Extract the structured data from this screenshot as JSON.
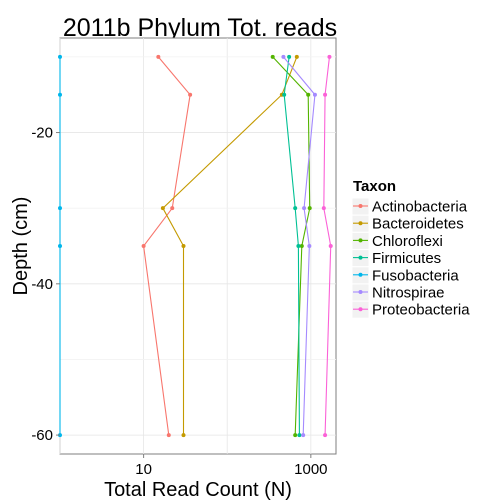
{
  "chart_data": {
    "type": "line",
    "title": "2011b Phylum Tot. reads",
    "xlabel": "Total Read Count (N)",
    "ylabel": "Depth (cm)",
    "x_scale": "log10",
    "xlim": [
      1,
      2000
    ],
    "x_ticks": [
      {
        "value": 10,
        "label": "10"
      },
      {
        "value": 1000,
        "label": "1000"
      }
    ],
    "ylim": [
      -62.5,
      -7.5
    ],
    "y_ticks": [
      {
        "value": -20,
        "label": "-20"
      },
      {
        "value": -40,
        "label": "-40"
      },
      {
        "value": -60,
        "label": "-60"
      }
    ],
    "grid": true,
    "legend": {
      "title": "Taxon",
      "position": "right"
    },
    "series": [
      {
        "name": "Actinobacteria",
        "color": "#F8766D",
        "points": [
          [
            15,
            -10
          ],
          [
            36,
            -15
          ],
          [
            22,
            -30
          ],
          [
            10,
            -35
          ],
          [
            20,
            -60
          ]
        ]
      },
      {
        "name": "Bacteroidetes",
        "color": "#C49A00",
        "points": [
          [
            680,
            -10
          ],
          [
            450,
            -15
          ],
          [
            17,
            -30
          ],
          [
            30,
            -35
          ],
          [
            30,
            -60
          ]
        ]
      },
      {
        "name": "Chloroflexi",
        "color": "#53B400",
        "points": [
          [
            350,
            -10
          ],
          [
            930,
            -15
          ],
          [
            970,
            -30
          ],
          [
            780,
            -35
          ],
          [
            650,
            -60
          ]
        ]
      },
      {
        "name": "Firmicutes",
        "color": "#00C094",
        "points": [
          [
            550,
            -10
          ],
          [
            480,
            -15
          ],
          [
            650,
            -30
          ],
          [
            710,
            -35
          ],
          [
            730,
            -60
          ]
        ]
      },
      {
        "name": "Fusobacteria",
        "color": "#00B6EB",
        "points": [
          [
            1,
            -10
          ],
          [
            1,
            -15
          ],
          [
            1,
            -30
          ],
          [
            1,
            -35
          ],
          [
            1,
            -60
          ]
        ]
      },
      {
        "name": "Nitrospirae",
        "color": "#A58AFF",
        "points": [
          [
            470,
            -10
          ],
          [
            1120,
            -15
          ],
          [
            830,
            -30
          ],
          [
            960,
            -35
          ],
          [
            810,
            -60
          ]
        ]
      },
      {
        "name": "Proteobacteria",
        "color": "#FB61D7",
        "points": [
          [
            1670,
            -10
          ],
          [
            1480,
            -15
          ],
          [
            1430,
            -30
          ],
          [
            1730,
            -35
          ],
          [
            1480,
            -60
          ]
        ]
      }
    ]
  }
}
